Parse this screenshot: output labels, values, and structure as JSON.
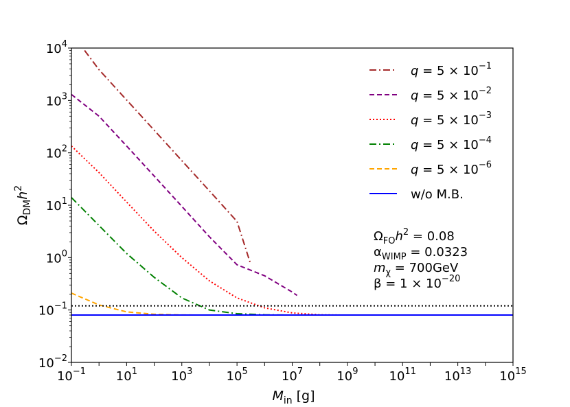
{
  "chart_data": {
    "type": "line",
    "xlabel": "M_in [g]",
    "ylabel": "Ω_DM h²",
    "x_scale": "log",
    "y_scale": "log",
    "xlim": [
      0.1,
      1000000000000000.0
    ],
    "ylim": [
      0.01,
      10000
    ],
    "x_ticks": [
      {
        "value": 0.1,
        "base": "10",
        "exp": "−1"
      },
      {
        "value": 10,
        "base": "10",
        "exp": "1"
      },
      {
        "value": 1000,
        "base": "10",
        "exp": "3"
      },
      {
        "value": 100000,
        "base": "10",
        "exp": "5"
      },
      {
        "value": 10000000.0,
        "base": "10",
        "exp": "7"
      },
      {
        "value": 1000000000.0,
        "base": "10",
        "exp": "9"
      },
      {
        "value": 100000000000.0,
        "base": "10",
        "exp": "11"
      },
      {
        "value": 10000000000000.0,
        "base": "10",
        "exp": "13"
      },
      {
        "value": 1000000000000000.0,
        "base": "10",
        "exp": "15"
      }
    ],
    "y_ticks": [
      {
        "value": 0.01,
        "base": "10",
        "exp": "−2"
      },
      {
        "value": 0.1,
        "base": "10",
        "exp": "−1"
      },
      {
        "value": 1,
        "base": "10",
        "exp": "0"
      },
      {
        "value": 10,
        "base": "10",
        "exp": "1"
      },
      {
        "value": 100,
        "base": "10",
        "exp": "2"
      },
      {
        "value": 1000,
        "base": "10",
        "exp": "3"
      },
      {
        "value": 10000,
        "base": "10",
        "exp": "4"
      }
    ],
    "grid": false,
    "legend_position": "top-right",
    "series": [
      {
        "name": "q = 5 × 10⁻¹",
        "label_exp": "−1",
        "color": "#a52a2a",
        "dash": "dashdot",
        "x": [
          0.3,
          1,
          10,
          100,
          1000,
          10000,
          100000,
          300000
        ],
        "y": [
          9000,
          3860,
          1020,
          270,
          71,
          18.8,
          4.9,
          0.8
        ]
      },
      {
        "name": "q = 5 × 10⁻²",
        "label_exp": "−2",
        "color": "#800080",
        "dash": "dashed",
        "x": [
          0.1,
          1,
          10,
          100,
          1000,
          10000,
          100000,
          1000000,
          3000000,
          10000000,
          15000000
        ],
        "y": [
          1300,
          500,
          135,
          36,
          9.5,
          2.5,
          0.73,
          0.45,
          0.32,
          0.22,
          0.19
        ]
      },
      {
        "name": "q = 5 × 10⁻³",
        "label_exp": "−3",
        "color": "#ff0000",
        "dash": "dotted",
        "x": [
          0.1,
          1,
          10,
          100,
          1000,
          10000,
          100000,
          1000000,
          10000000,
          100000000,
          1000000000
        ],
        "y": [
          135,
          42,
          11.5,
          3.2,
          1.0,
          0.36,
          0.17,
          0.11,
          0.088,
          0.081,
          0.08
        ]
      },
      {
        "name": "q = 5 × 10⁻⁴",
        "label_exp": "−4",
        "color": "#008000",
        "dash": "dashdot",
        "x": [
          0.1,
          1,
          10,
          100,
          1000,
          10000,
          100000,
          1000000,
          10000000
        ],
        "y": [
          14,
          4.1,
          1.2,
          0.42,
          0.17,
          0.1,
          0.085,
          0.081,
          0.08
        ]
      },
      {
        "name": "q = 5 × 10⁻⁶",
        "label_exp": "−6",
        "color": "#ffa500",
        "dash": "dashed",
        "x": [
          0.1,
          1,
          10,
          100,
          1000,
          10000
        ],
        "y": [
          0.21,
          0.125,
          0.092,
          0.083,
          0.0805,
          0.08
        ]
      },
      {
        "name": "w/o M.B.",
        "label_exp": "",
        "color": "#0000ff",
        "dash": "solid",
        "x": [
          0.1,
          1000000000000000.0
        ],
        "y": [
          0.08,
          0.08
        ]
      },
      {
        "name": "",
        "label_exp": "",
        "color": "#000000",
        "dash": "dotted",
        "in_legend": false,
        "x": [
          0.1,
          1000000000000000.0
        ],
        "y": [
          0.12,
          0.12
        ]
      }
    ],
    "annotations": [
      {
        "main": "Ω",
        "sub": "FO",
        "tail": "h",
        "sup": "2",
        "rest": " = 0.08"
      },
      {
        "main": "α",
        "sub": "WIMP",
        "tail": "",
        "sup": "",
        "rest": " = 0.0323"
      },
      {
        "main": "m",
        "sub": "χ",
        "tail": "",
        "sup": "",
        "rest": " = 700GeV"
      },
      {
        "main": "β",
        "sub": "",
        "tail": "",
        "sup": "",
        "rest": " = 1 × 10",
        "rest_sup": "−20"
      }
    ]
  }
}
